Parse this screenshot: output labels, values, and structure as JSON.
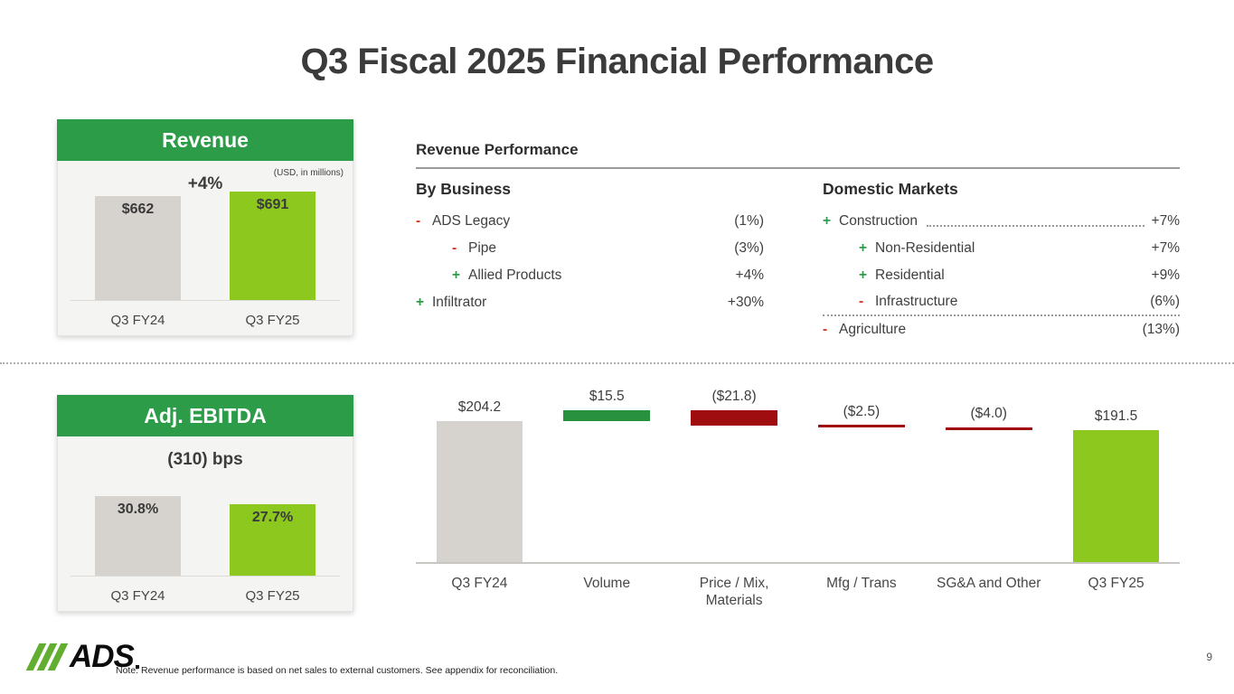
{
  "slide": {
    "title": "Q3 Fiscal 2025 Financial Performance",
    "page_number": "9"
  },
  "revenue_performance": {
    "title": "Revenue Performance",
    "by_business": {
      "title": "By Business",
      "rows": [
        {
          "sign": "-",
          "label": "ADS Legacy",
          "value": "(1%)",
          "indent": false
        },
        {
          "sign": "-",
          "label": "Pipe",
          "value": "(3%)",
          "indent": true
        },
        {
          "sign": "+",
          "label": "Allied Products",
          "value": "+4%",
          "indent": true
        },
        {
          "sign": "+",
          "label": "Infiltrator",
          "value": "+30%",
          "indent": false
        }
      ]
    },
    "domestic_markets": {
      "title": "Domestic Markets",
      "rows": [
        {
          "sign": "+",
          "label": "Construction",
          "value": "+7%",
          "indent": false,
          "leader": true
        },
        {
          "sign": "+",
          "label": "Non-Residential",
          "value": "+7%",
          "indent": true
        },
        {
          "sign": "+",
          "label": "Residential",
          "value": "+9%",
          "indent": true
        },
        {
          "sign": "-",
          "label": "Infrastructure",
          "value": "(6%)",
          "indent": true,
          "rule_below": true
        },
        {
          "sign": "-",
          "label": "Agriculture",
          "value": "(13%)",
          "indent": false
        }
      ]
    }
  },
  "chart_data": [
    {
      "id": "revenue_bars",
      "type": "bar",
      "title": "Revenue",
      "subtitle": "+4%",
      "units": "(USD, in millions)",
      "categories": [
        "Q3 FY24",
        "Q3 FY25"
      ],
      "values": [
        662,
        691
      ],
      "value_labels": [
        "$662",
        "$691"
      ],
      "bar_colors": [
        "gray",
        "green-bright"
      ],
      "ylim": [
        0,
        700
      ],
      "grid": false,
      "legend": "none"
    },
    {
      "id": "adj_ebitda_margin_bars",
      "type": "bar",
      "title": "Adj. EBITDA",
      "subtitle": "(310) bps",
      "categories": [
        "Q3 FY24",
        "Q3 FY25"
      ],
      "values": [
        30.8,
        27.7
      ],
      "value_labels": [
        "30.8%",
        "27.7%"
      ],
      "bar_colors": [
        "gray",
        "green-bright"
      ],
      "ylim": [
        0,
        32
      ],
      "grid": false,
      "legend": "none"
    },
    {
      "id": "adj_ebitda_bridge",
      "type": "bar",
      "subtype": "waterfall",
      "categories": [
        "Q3 FY24",
        "Volume",
        "Price / Mix, Materials",
        "Mfg / Trans",
        "SG&A and Other",
        "Q3 FY25"
      ],
      "values": [
        204.2,
        15.5,
        -21.8,
        -2.5,
        -4.0,
        191.5
      ],
      "value_labels": [
        "$204.2",
        "$15.5",
        "($21.8)",
        "($2.5)",
        "($4.0)",
        "$191.5"
      ],
      "bar_roles": [
        "total",
        "delta",
        "delta",
        "delta",
        "delta",
        "total"
      ],
      "bar_colors": [
        "gray",
        "green-mid",
        "red",
        "red",
        "red",
        "green-bright"
      ],
      "grid": false,
      "legend": "none"
    }
  ],
  "footer": {
    "logo_text": "ADS",
    "note": "Note: Revenue performance is based on net sales to external customers. See appendix for reconciliation."
  },
  "colors": {
    "green_dark": "#2D9C49",
    "green_mid": "#27913F",
    "green_bright": "#8CC81E",
    "gray_bar": "#D6D3CF",
    "red_dark": "#A00D11",
    "pos_green": "#2D9C49",
    "neg_red": "#E0301E",
    "text_dark": "#3F3F3F"
  }
}
